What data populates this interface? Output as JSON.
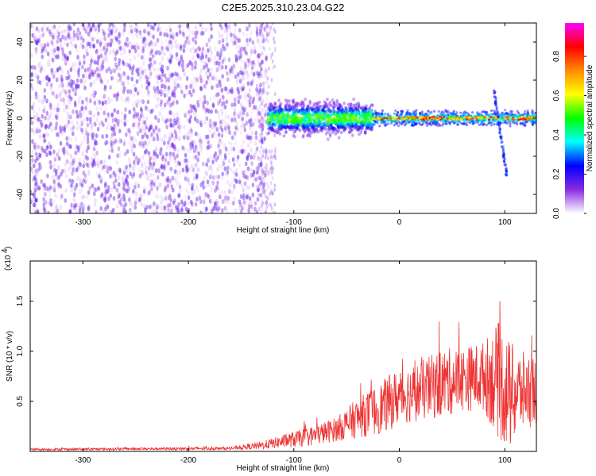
{
  "title": "C2E5.2025.310.23.04.G22",
  "chart_data": [
    {
      "type": "heatmap",
      "xlabel": "Height of straight line (km)",
      "ylabel": "Frequency (Hz)",
      "xlim": [
        -350,
        130
      ],
      "ylim": [
        -50,
        50
      ],
      "xticks": [
        -300,
        -200,
        -100,
        0,
        100
      ],
      "yticks": [
        -40,
        -20,
        0,
        20,
        40
      ],
      "colorbar": {
        "label": "Normalized spectral amplitude",
        "range": [
          0.0,
          0.97
        ],
        "ticks": [
          0.0,
          0.2,
          0.4,
          0.6,
          0.8
        ],
        "tick_labels": [
          "0.0",
          "0.2",
          "0.4",
          "0.6",
          "0.8"
        ],
        "colormap": [
          "#ffffff",
          "#8a2be2",
          "#0000ff",
          "#00ffff",
          "#00ff00",
          "#ffff00",
          "#ff8c00",
          "#ff0000",
          "#ff00ff"
        ]
      },
      "features": {
        "noise_region_x": [
          -350,
          -125
        ],
        "noise_amplitude": 0.15,
        "broadband_region_x": [
          -125,
          -25
        ],
        "broadband_halfwidth_hz": 8,
        "carrier_region_x": [
          -25,
          130
        ],
        "carrier_frequency_hz": 0,
        "carrier_peak_amplitude": 0.9,
        "spike_x": 95,
        "spike_freq_range": [
          -30,
          15
        ]
      }
    },
    {
      "type": "line",
      "xlabel": "Height of straight line (km)",
      "ylabel": "SNR (10 * v/v)",
      "y_multiplier": "(x10",
      "y_multiplier_exp": "4",
      "xlim": [
        -350,
        130
      ],
      "ylim": [
        0,
        1.9
      ],
      "xticks": [
        -300,
        -200,
        -100,
        0,
        100
      ],
      "yticks": [
        0.5,
        1.0,
        1.5
      ],
      "ytick_labels": [
        "0.5",
        "1.0",
        "1.5"
      ],
      "line_color": "#ee3333",
      "envelope": {
        "x": [
          -350,
          -160,
          -130,
          -100,
          -80,
          -60,
          -40,
          -20,
          -10,
          0,
          20,
          40,
          60,
          80,
          95,
          105,
          115,
          130
        ],
        "mean": [
          0.02,
          0.03,
          0.06,
          0.12,
          0.16,
          0.22,
          0.33,
          0.42,
          0.48,
          0.55,
          0.6,
          0.68,
          0.72,
          0.75,
          0.7,
          0.55,
          0.6,
          0.62
        ],
        "amplitude": [
          0.01,
          0.015,
          0.04,
          0.08,
          0.1,
          0.12,
          0.2,
          0.25,
          0.28,
          0.28,
          0.3,
          0.35,
          0.32,
          0.35,
          0.6,
          0.55,
          0.4,
          0.35
        ]
      }
    }
  ]
}
